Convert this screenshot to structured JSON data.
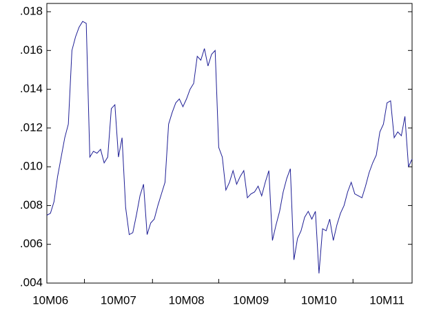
{
  "chart_data": {
    "type": "line",
    "categories": [
      null,
      "10M06",
      null,
      null,
      null,
      null,
      null,
      null,
      null,
      null,
      null,
      null,
      null,
      null,
      null,
      null,
      null,
      null,
      null,
      null,
      "10M07",
      null,
      null,
      null,
      null,
      null,
      null,
      null,
      null,
      null,
      null,
      null,
      null,
      null,
      null,
      null,
      null,
      null,
      null,
      "10M08",
      null,
      null,
      null,
      null,
      null,
      null,
      null,
      null,
      null,
      null,
      null,
      null,
      null,
      null,
      null,
      null,
      null,
      "10M09",
      null,
      null,
      null,
      null,
      null,
      null,
      null,
      null,
      null,
      null,
      null,
      null,
      null,
      null,
      null,
      null,
      null,
      null,
      "10M10",
      null,
      null,
      null,
      null,
      null,
      null,
      null,
      null,
      null,
      null,
      null,
      null,
      null,
      null,
      null,
      null,
      null,
      null,
      "10M11",
      null,
      null,
      null,
      null,
      null,
      null,
      null
    ],
    "series": [
      {
        "color": "#1c1c94",
        "values": [
          0.0075,
          0.0076,
          0.0082,
          0.0095,
          0.0105,
          0.0115,
          0.0122,
          0.016,
          0.0167,
          0.0172,
          0.0175,
          0.0174,
          0.0105,
          0.0108,
          0.0107,
          0.0109,
          0.0102,
          0.0105,
          0.013,
          0.0132,
          0.0105,
          0.0115,
          0.0079,
          0.0065,
          0.0066,
          0.0075,
          0.0085,
          0.0091,
          0.0065,
          0.0071,
          0.0073,
          0.008,
          0.0086,
          0.0092,
          0.0122,
          0.0128,
          0.0133,
          0.0135,
          0.0131,
          0.0135,
          0.014,
          0.0143,
          0.0157,
          0.0155,
          0.0161,
          0.0152,
          0.0158,
          0.016,
          0.011,
          0.0105,
          0.0088,
          0.0092,
          0.0098,
          0.0091,
          0.0095,
          0.0098,
          0.0084,
          0.0086,
          0.0087,
          0.009,
          0.0085,
          0.0092,
          0.0098,
          0.0062,
          0.007,
          0.0077,
          0.0087,
          0.0094,
          0.0099,
          0.0052,
          0.0063,
          0.0067,
          0.0074,
          0.0077,
          0.0073,
          0.0077,
          0.0045,
          0.0068,
          0.0067,
          0.0073,
          0.0062,
          0.007,
          0.0076,
          0.008,
          0.0087,
          0.0092,
          0.0086,
          0.0085,
          0.0084,
          0.009,
          0.0097,
          0.0102,
          0.0106,
          0.0118,
          0.0122,
          0.0133,
          0.0134,
          0.0115,
          0.0118,
          0.0116,
          0.0126,
          0.01,
          0.0104
        ]
      }
    ],
    "ylim": [
      0.004,
      0.018
    ],
    "yticks": [
      {
        "value": 0.004,
        "label": ".004"
      },
      {
        "value": 0.006,
        "label": ".006"
      },
      {
        "value": 0.008,
        "label": ".008"
      },
      {
        "value": 0.01,
        "label": ".010"
      },
      {
        "value": 0.012,
        "label": ".012"
      },
      {
        "value": 0.014,
        "label": ".014"
      },
      {
        "value": 0.016,
        "label": ".016"
      },
      {
        "value": 0.018,
        "label": ".018"
      }
    ],
    "grid": false
  }
}
